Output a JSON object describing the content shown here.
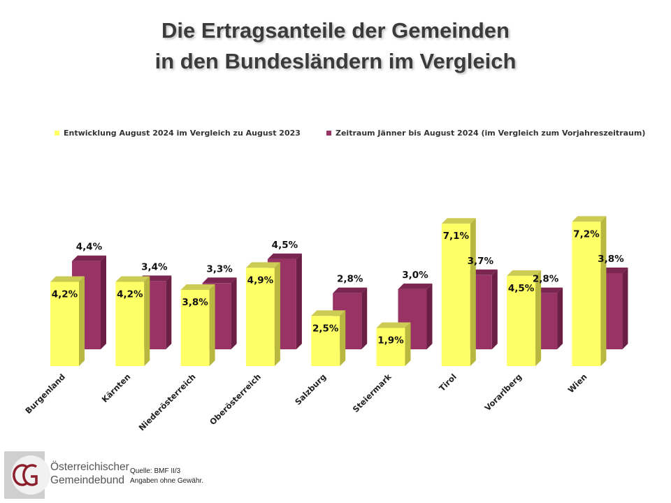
{
  "title_lines": [
    "Die Ertragsanteile der Gemeinden",
    "in den Bundesländern im Vergleich"
  ],
  "chart_data": {
    "type": "bar",
    "title": "Die Ertragsanteile der Gemeinden in den Bundesländern im Vergleich",
    "xlabel": "",
    "ylabel": "",
    "categories": [
      "Burgenland",
      "Kärnten",
      "Niederösterreich",
      "Oberösterreich",
      "Salzburg",
      "Steiermark",
      "Tirol",
      "Vorarlberg",
      "Wien"
    ],
    "series": [
      {
        "name": "Entwicklung August 2024 im Vergleich zu August 2023",
        "color": "#ffff66",
        "values": [
          4.2,
          4.2,
          3.8,
          4.9,
          2.5,
          1.9,
          7.1,
          4.5,
          7.2
        ],
        "labels": [
          "4,2%",
          "4,2%",
          "3,8%",
          "4,9%",
          "2,5%",
          "1,9%",
          "7,1%",
          "4,5%",
          "7,2%"
        ]
      },
      {
        "name": "Zeitraum Jänner bis August 2024 (im Vergleich zum Vorjahreszeitraum)",
        "color": "#993366",
        "values": [
          4.4,
          3.4,
          3.3,
          4.5,
          2.8,
          3.0,
          3.7,
          2.8,
          3.8
        ],
        "labels": [
          "4,4%",
          "3,4%",
          "3,3%",
          "4,5%",
          "2,8%",
          "3,0%",
          "3,7%",
          "2,8%",
          "3,8%"
        ]
      }
    ],
    "value_unit": "%",
    "ylim": [
      0,
      8
    ],
    "grid": false,
    "legend_position": "top",
    "style": "3d-column"
  },
  "footer": {
    "logo_monogram": "ÖG",
    "org_name_lines": [
      "Österreichischer",
      "Gemeindebund"
    ],
    "source_lines": [
      "Quelle: BMF II/3",
      "Angaben ohne Gewähr."
    ]
  }
}
